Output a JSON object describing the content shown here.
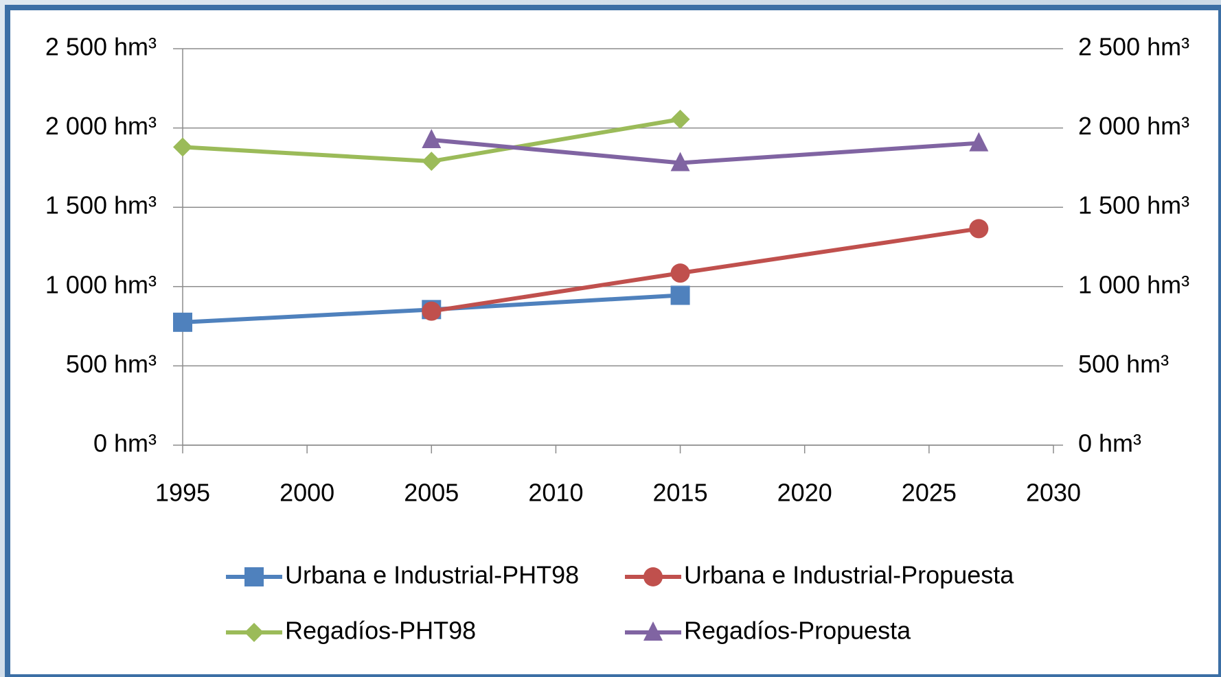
{
  "chart_data": {
    "type": "line",
    "x": [
      1995,
      2005,
      2015,
      2027
    ],
    "xlim": [
      1995,
      2030
    ],
    "xticks": [
      1995,
      2000,
      2005,
      2010,
      2015,
      2020,
      2025,
      2030
    ],
    "ylim": [
      0,
      2500
    ],
    "yticks": [
      {
        "value": 0,
        "label": "0 hm³"
      },
      {
        "value": 500,
        "label": "500 hm³"
      },
      {
        "value": 1000,
        "label": "1 000 hm³"
      },
      {
        "value": 1500,
        "label": "1 500 hm³"
      },
      {
        "value": 2000,
        "label": "2 000 hm³"
      },
      {
        "value": 2500,
        "label": "2 500 hm³"
      }
    ],
    "y2lim": [
      0,
      2500
    ],
    "y2ticks": [
      {
        "value": 0,
        "label": "0 hm³"
      },
      {
        "value": 500,
        "label": "500 hm³"
      },
      {
        "value": 1000,
        "label": "1 000 hm³"
      },
      {
        "value": 1500,
        "label": "1 500 hm³"
      },
      {
        "value": 2000,
        "label": "2 000 hm³"
      },
      {
        "value": 2500,
        "label": "2 500 hm³"
      }
    ],
    "grid": true,
    "legend": "bottom",
    "series": [
      {
        "name": "Urbana e Industrial-PHT98",
        "color": "#4f81bd",
        "marker": "square",
        "values": [
          775,
          855,
          945,
          null
        ]
      },
      {
        "name": "Urbana e Industrial-Propuesta",
        "color": "#c0504d",
        "marker": "circle",
        "values": [
          null,
          845,
          1085,
          1365
        ]
      },
      {
        "name": "Regadíos-PHT98",
        "color": "#9bbb59",
        "marker": "diamond",
        "values": [
          1880,
          1790,
          2055,
          null
        ]
      },
      {
        "name": "Regadíos-Propuesta",
        "color": "#8064a2",
        "marker": "triangle",
        "values": [
          null,
          1925,
          1780,
          1905
        ]
      }
    ]
  }
}
